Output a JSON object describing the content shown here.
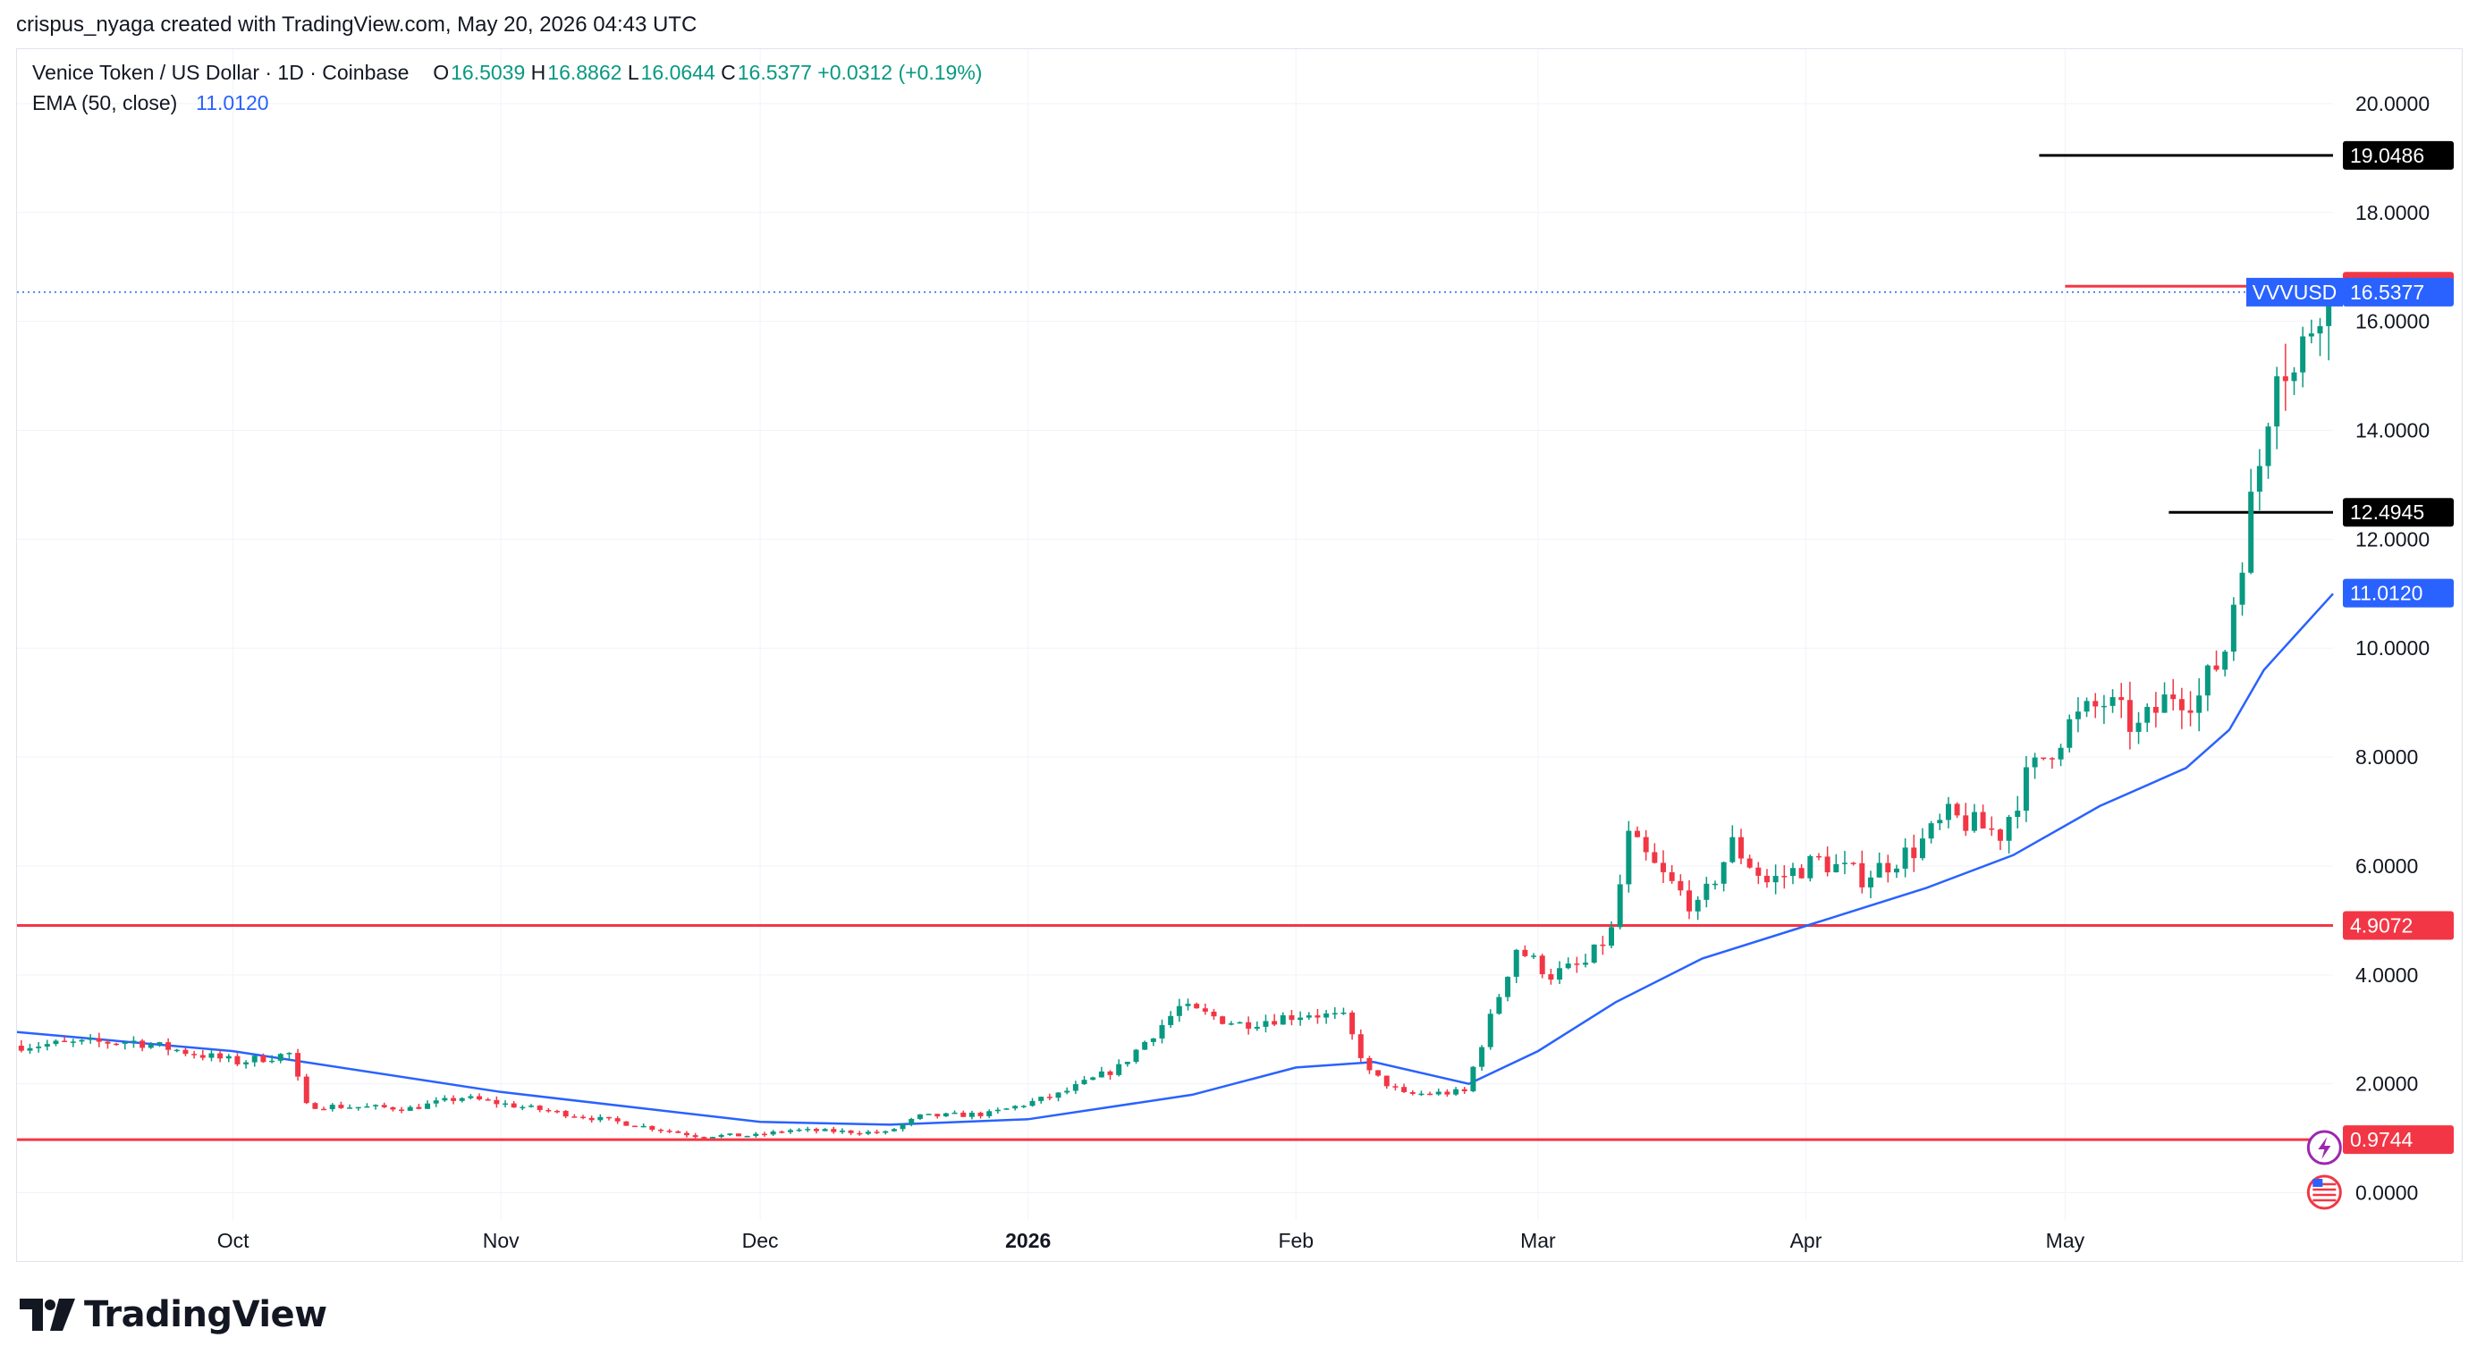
{
  "header": {
    "attribution": "crispus_nyaga created with TradingView.com, May 20, 2026 04:43 UTC"
  },
  "legend": {
    "symbol_title": "Venice Token / US Dollar · 1D · Coinbase",
    "open_label": "O",
    "open": "16.5039",
    "high_label": "H",
    "high": "16.8862",
    "low_label": "L",
    "low": "16.0644",
    "close_label": "C",
    "close": "16.5377",
    "change": "+0.0312 (+0.19%)",
    "ema_label": "EMA (50, close)",
    "ema_value": "11.0120"
  },
  "brand": {
    "name": "TradingView"
  },
  "colors": {
    "up": "#089981",
    "down": "#f23645",
    "ema": "#2962ff",
    "hline": "#f23645",
    "grid": "#f0f3fa",
    "text": "#131722"
  },
  "chart_data": {
    "type": "candlestick",
    "symbol": "VVVUSD",
    "y_axis": {
      "ticks": [
        "20.0000",
        "18.0000",
        "16.0000",
        "14.0000",
        "12.0000",
        "10.0000",
        "8.0000",
        "6.0000",
        "4.0000",
        "2.0000",
        "0.0000"
      ],
      "range": [
        -0.5,
        21.0
      ]
    },
    "x_axis": {
      "ticks": [
        {
          "label": "Oct",
          "date": "2025-10-01",
          "bold": false
        },
        {
          "label": "Nov",
          "date": "2025-11-01",
          "bold": false
        },
        {
          "label": "Dec",
          "date": "2025-12-01",
          "bold": false
        },
        {
          "label": "2026",
          "date": "2026-01-01",
          "bold": true
        },
        {
          "label": "Feb",
          "date": "2026-02-01",
          "bold": false
        },
        {
          "label": "Mar",
          "date": "2026-03-01",
          "bold": false
        },
        {
          "label": "Apr",
          "date": "2026-04-01",
          "bold": false
        },
        {
          "label": "May",
          "date": "2026-05-01",
          "bold": false
        }
      ],
      "range": [
        "2025-09-06",
        "2026-06-01"
      ]
    },
    "price_line": {
      "label": "VVVUSD",
      "value": 16.5377,
      "text": "16.5377"
    },
    "ema_tag": {
      "value": 11.012,
      "text": "11.0120"
    },
    "horizontal_lines": [
      {
        "value": 4.9072,
        "text": "4.9072"
      },
      {
        "value": 0.9744,
        "text": "0.9744"
      },
      {
        "value": 16.6466,
        "text": "16.6466",
        "from": "2026-05-01"
      }
    ],
    "range_markers": [
      {
        "value": 19.0486,
        "text": "19.0486",
        "from": "2026-04-28"
      },
      {
        "value": 12.4945,
        "text": "12.4945",
        "from": "2026-05-13"
      }
    ],
    "candle_anchors": [
      [
        "2025-09-06",
        2.7
      ],
      [
        "2025-09-20",
        2.78
      ],
      [
        "2025-10-02",
        2.4
      ],
      [
        "2025-10-08",
        2.55
      ],
      [
        "2025-10-10",
        1.6
      ],
      [
        "2025-10-22",
        1.55
      ],
      [
        "2025-10-28",
        1.75
      ],
      [
        "2025-11-03",
        1.6
      ],
      [
        "2025-11-15",
        1.3
      ],
      [
        "2025-11-24",
        1.05
      ],
      [
        "2025-12-01",
        1.05
      ],
      [
        "2025-12-05",
        1.15
      ],
      [
        "2025-12-16",
        1.1
      ],
      [
        "2025-12-20",
        1.4
      ],
      [
        "2025-12-28",
        1.45
      ],
      [
        "2026-01-05",
        1.8
      ],
      [
        "2026-01-12",
        2.3
      ],
      [
        "2026-01-19",
        3.4
      ],
      [
        "2026-01-26",
        3.1
      ],
      [
        "2026-02-03",
        3.3
      ],
      [
        "2026-02-07",
        3.2
      ],
      [
        "2026-02-10",
        2.2
      ],
      [
        "2026-02-14",
        1.8
      ],
      [
        "2026-02-21",
        1.85
      ],
      [
        "2026-02-24",
        3.2
      ],
      [
        "2026-02-27",
        4.5
      ],
      [
        "2026-03-03",
        4.0
      ],
      [
        "2026-03-07",
        4.2
      ],
      [
        "2026-03-10",
        4.8
      ],
      [
        "2026-03-12",
        6.5
      ],
      [
        "2026-03-16",
        5.8
      ],
      [
        "2026-03-20",
        5.2
      ],
      [
        "2026-03-24",
        6.4
      ],
      [
        "2026-03-28",
        5.7
      ],
      [
        "2026-04-03",
        6.1
      ],
      [
        "2026-04-08",
        5.8
      ],
      [
        "2026-04-14",
        6.3
      ],
      [
        "2026-04-18",
        6.9
      ],
      [
        "2026-04-24",
        6.6
      ],
      [
        "2026-04-27",
        7.6
      ],
      [
        "2026-05-02",
        8.6
      ],
      [
        "2026-05-06",
        9.0
      ],
      [
        "2026-05-10",
        8.5
      ],
      [
        "2026-05-14",
        9.2
      ],
      [
        "2026-05-17",
        9.1
      ],
      [
        "2026-05-20",
        10.0
      ],
      [
        "2026-05-22",
        11.8
      ],
      [
        "2026-05-24",
        13.4
      ],
      [
        "2026-05-26",
        15.5
      ],
      [
        "2026-05-28",
        15.0
      ],
      [
        "2026-05-31",
        16.5
      ]
    ],
    "ema_points": [
      [
        "2025-09-06",
        2.95
      ],
      [
        "2025-10-01",
        2.6
      ],
      [
        "2025-11-01",
        1.85
      ],
      [
        "2025-12-01",
        1.3
      ],
      [
        "2025-12-16",
        1.25
      ],
      [
        "2026-01-01",
        1.35
      ],
      [
        "2026-01-20",
        1.8
      ],
      [
        "2026-02-01",
        2.3
      ],
      [
        "2026-02-10",
        2.4
      ],
      [
        "2026-02-21",
        2.0
      ],
      [
        "2026-03-01",
        2.6
      ],
      [
        "2026-03-10",
        3.5
      ],
      [
        "2026-03-20",
        4.3
      ],
      [
        "2026-04-01",
        4.9
      ],
      [
        "2026-04-15",
        5.6
      ],
      [
        "2026-04-25",
        6.2
      ],
      [
        "2026-05-05",
        7.1
      ],
      [
        "2026-05-15",
        7.8
      ],
      [
        "2026-05-20",
        8.5
      ],
      [
        "2026-05-24",
        9.6
      ],
      [
        "2026-05-28",
        10.3
      ],
      [
        "2026-06-01",
        11.0
      ]
    ],
    "grid": true,
    "legend_position": "top-left"
  }
}
